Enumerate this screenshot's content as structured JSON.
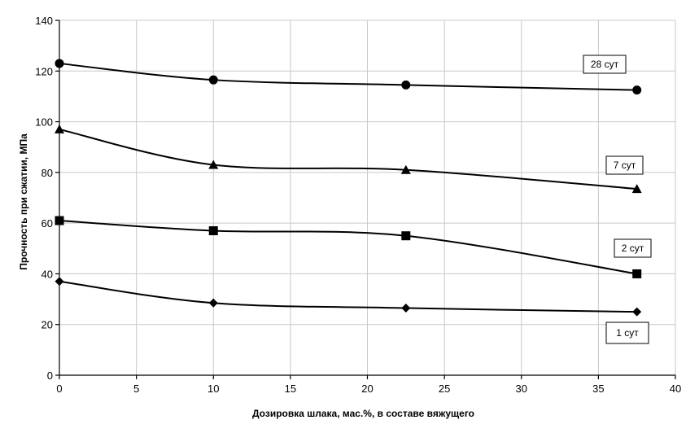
{
  "chart_data": {
    "type": "line",
    "title": "",
    "xlabel": "Дозировка шлака, мас.%, в составе вяжущего",
    "ylabel": "Прочность при сжатии, МПа",
    "xlim": [
      0,
      40
    ],
    "ylim": [
      0,
      140
    ],
    "x_ticks": [
      "0",
      "5",
      "10",
      "15",
      "20",
      "25",
      "30",
      "35",
      "40"
    ],
    "y_ticks": [
      "0",
      "20",
      "40",
      "60",
      "80",
      "100",
      "120",
      "140"
    ],
    "grid": true,
    "legend": "inline-labels",
    "series": [
      {
        "name": "28 сут",
        "marker": "circle",
        "x": [
          0,
          10,
          22.5,
          37.5
        ],
        "y": [
          123,
          116.5,
          114.5,
          112.5
        ]
      },
      {
        "name": "7 сут",
        "marker": "triangle",
        "x": [
          0,
          10,
          22.5,
          37.5
        ],
        "y": [
          97,
          83,
          81,
          73.5
        ]
      },
      {
        "name": "2 сут",
        "marker": "square",
        "x": [
          0,
          10,
          22.5,
          37.5
        ],
        "y": [
          61,
          57,
          55,
          40
        ]
      },
      {
        "name": "1 сут",
        "marker": "diamond",
        "x": [
          0,
          10,
          22.5,
          37.5
        ],
        "y": [
          37,
          28.5,
          26.5,
          25
        ]
      }
    ]
  }
}
